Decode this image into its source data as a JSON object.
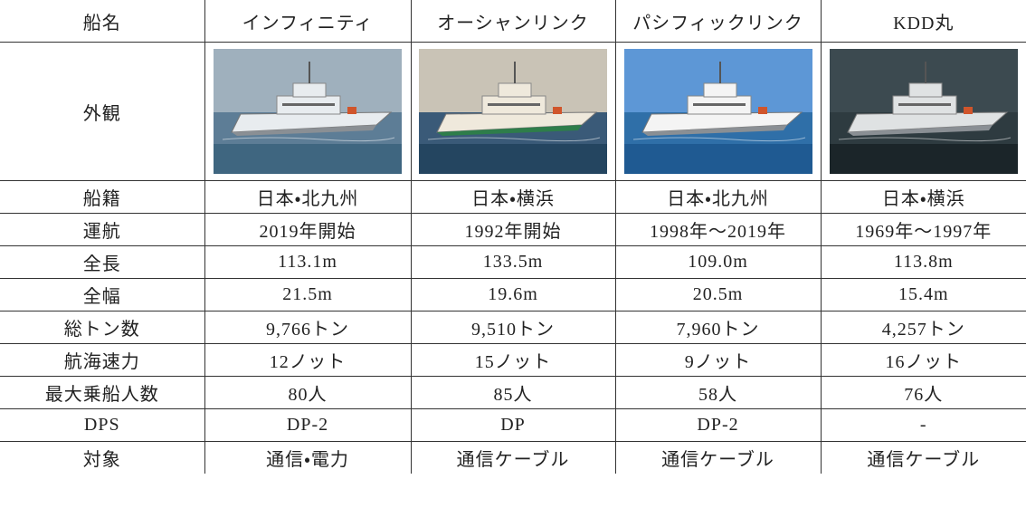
{
  "table": {
    "header": [
      "船名",
      "インフィニティ",
      "オーシャンリンク",
      "パシフィックリンク",
      "KDD丸"
    ],
    "image_row_label": "外観",
    "rows": [
      [
        "船籍",
        "日本・北九州",
        "日本・横浜",
        "日本・北九州",
        "日本・横浜"
      ],
      [
        "運航",
        "2019年開始",
        "1992年開始",
        "1998年～2019年",
        "1969年～1997年"
      ],
      [
        "全長",
        "113.1m",
        "133.5m",
        "109.0m",
        "113.8m"
      ],
      [
        "全幅",
        "21.5m",
        "19.6m",
        "20.5m",
        "15.4m"
      ],
      [
        "総トン数",
        "9,766トン",
        "9,510トン",
        "7,960トン",
        "4,257トン"
      ],
      [
        "航海速力",
        "12ノット",
        "15ノット",
        "9ノット",
        "16ノット"
      ],
      [
        "最大乗船人数",
        "80人",
        "85人",
        "58人",
        "76人"
      ],
      [
        "DPS",
        "DP-2",
        "DP",
        "DP-2",
        "-"
      ],
      [
        "対象",
        "通信・電力",
        "通信ケーブル",
        "通信ケーブル",
        "通信ケーブル"
      ]
    ]
  }
}
